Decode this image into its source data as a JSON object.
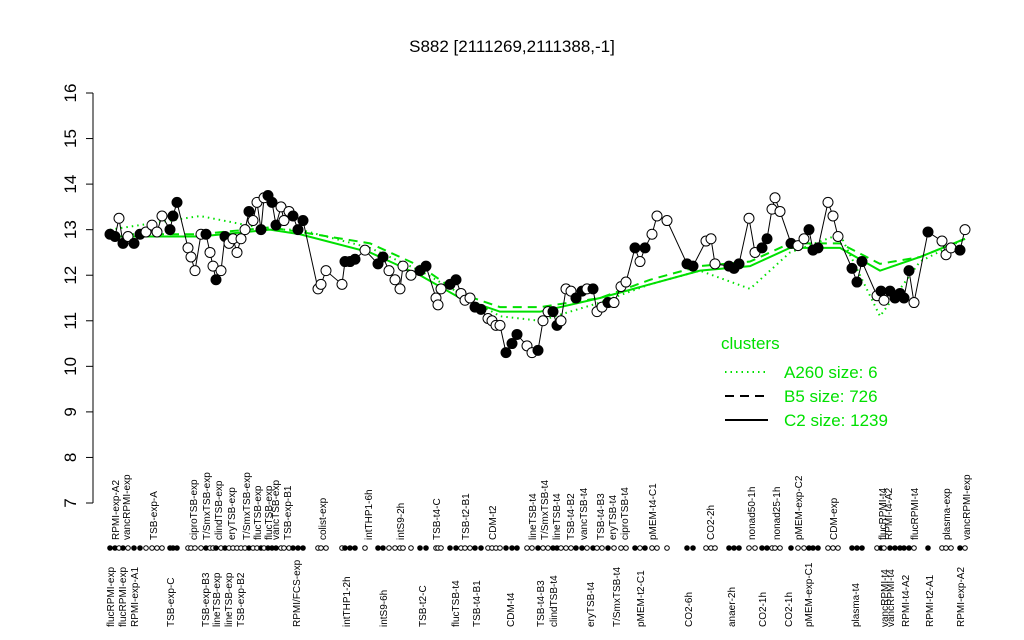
{
  "chart_data": {
    "type": "scatter",
    "title": "S882 [2111269,2111388,-1]",
    "xlim": [
      100,
      980
    ],
    "ylim": [
      7,
      16
    ],
    "yticks": [
      7,
      8,
      9,
      10,
      11,
      12,
      13,
      14,
      15,
      16
    ],
    "x": [
      110,
      115,
      119,
      123,
      128,
      134,
      140,
      146,
      152,
      157,
      162,
      170,
      173,
      177,
      188,
      191,
      195,
      201,
      206,
      210,
      213,
      216,
      221,
      225,
      229,
      233,
      237,
      241,
      245,
      249,
      253,
      257,
      261,
      264,
      268,
      272,
      276,
      281,
      284,
      289,
      293,
      298,
      303,
      318,
      321,
      326,
      342,
      345,
      350,
      355,
      365,
      378,
      383,
      389,
      395,
      400,
      403,
      411,
      420,
      426,
      436,
      438,
      441,
      450,
      456,
      461,
      465,
      470,
      475,
      481,
      488,
      492,
      496,
      500,
      506,
      512,
      517,
      527,
      532,
      538,
      543,
      548,
      553,
      557,
      561,
      566,
      571,
      576,
      582,
      587,
      593,
      597,
      602,
      608,
      614,
      621,
      626,
      635,
      640,
      645,
      652,
      657,
      667,
      687,
      693,
      706,
      711,
      715,
      729,
      734,
      739,
      749,
      755,
      762,
      767,
      772,
      775,
      780,
      791,
      798,
      804,
      809,
      813,
      818,
      828,
      833,
      838,
      852,
      857,
      862,
      877,
      881,
      884,
      890,
      895,
      900,
      904,
      909,
      914,
      928,
      942,
      946,
      951,
      960,
      965
    ],
    "series": [
      {
        "color": "#000000",
        "values": [
          12.9,
          12.85,
          13.25,
          12.7,
          12.85,
          12.7,
          12.9,
          12.95,
          13.1,
          12.95,
          13.3,
          13.0,
          13.3,
          13.6,
          12.6,
          12.4,
          12.1,
          12.9,
          12.9,
          12.5,
          12.2,
          11.9,
          12.1,
          12.85,
          12.7,
          12.8,
          12.5,
          12.8,
          13.0,
          13.4,
          13.2,
          13.6,
          13.0,
          13.7,
          13.75,
          13.6,
          13.1,
          13.5,
          13.2,
          13.4,
          13.3,
          13.0,
          13.2,
          11.7,
          11.8,
          12.1,
          11.8,
          12.3,
          12.3,
          12.35,
          12.55,
          12.25,
          12.4,
          12.1,
          11.9,
          11.7,
          12.2,
          12.0,
          12.1,
          12.2,
          11.5,
          11.35,
          11.7,
          11.8,
          11.9,
          11.6,
          11.45,
          11.5,
          11.3,
          11.25,
          11.05,
          11.0,
          10.9,
          10.9,
          10.3,
          10.5,
          10.7,
          10.45,
          10.3,
          10.35,
          11.0,
          11.2,
          11.2,
          10.9,
          11.0,
          11.7,
          11.65,
          11.5,
          11.65,
          11.7,
          11.7,
          11.2,
          11.3,
          11.4,
          11.4,
          11.75,
          11.85,
          12.6,
          12.3,
          12.6,
          12.9,
          13.3,
          13.2,
          12.25,
          12.2,
          12.75,
          12.8,
          12.25,
          12.2,
          12.15,
          12.25,
          13.25,
          12.5,
          12.6,
          12.8,
          13.45,
          13.7,
          13.4,
          12.7,
          12.65,
          12.8,
          13.0,
          12.55,
          12.6,
          13.6,
          13.3,
          12.85,
          12.15,
          11.85,
          12.3,
          11.55,
          11.65,
          11.45,
          11.65,
          11.5,
          11.6,
          11.5,
          12.1,
          11.4,
          12.95,
          12.75,
          12.45,
          12.6,
          12.55,
          13.0
        ]
      }
    ],
    "filled": [
      true,
      true,
      false,
      true,
      false,
      true,
      true,
      false,
      false,
      false,
      false,
      true,
      true,
      true,
      false,
      false,
      false,
      false,
      true,
      false,
      false,
      true,
      false,
      true,
      false,
      false,
      false,
      false,
      false,
      true,
      false,
      false,
      true,
      false,
      true,
      true,
      true,
      false,
      false,
      false,
      true,
      true,
      true,
      false,
      false,
      false,
      false,
      true,
      true,
      true,
      false,
      true,
      true,
      false,
      false,
      false,
      false,
      false,
      true,
      true,
      false,
      false,
      false,
      true,
      true,
      false,
      false,
      false,
      true,
      true,
      false,
      false,
      false,
      false,
      true,
      true,
      true,
      false,
      false,
      true,
      false,
      false,
      true,
      true,
      false,
      false,
      false,
      true,
      true,
      false,
      true,
      false,
      false,
      true,
      false,
      false,
      false,
      true,
      false,
      true,
      false,
      false,
      false,
      true,
      true,
      false,
      false,
      false,
      true,
      true,
      true,
      false,
      false,
      true,
      true,
      false,
      false,
      false,
      true,
      false,
      false,
      true,
      true,
      true,
      false,
      false,
      false,
      true,
      true,
      true,
      false,
      true,
      false,
      true,
      true,
      true,
      true,
      true,
      false,
      true,
      false,
      false,
      false,
      true,
      false
    ],
    "sample_labels": [
      {
        "x": 115,
        "row": "top",
        "text": "RPMI-exp-A2"
      },
      {
        "x": 126,
        "row": "top",
        "text": "vancRPMI-exp"
      },
      {
        "x": 153,
        "row": "top",
        "text": "TSB-exp-A"
      },
      {
        "x": 193,
        "row": "top",
        "text": "ciproTSB-exp"
      },
      {
        "x": 206,
        "row": "top",
        "text": "T/SmxTSB-exp"
      },
      {
        "x": 218,
        "row": "top",
        "text": "clindTSB-exp"
      },
      {
        "x": 231,
        "row": "top",
        "text": "eryTSB-exp"
      },
      {
        "x": 246,
        "row": "top",
        "text": "T/SmxTSB-exp"
      },
      {
        "x": 257,
        "row": "top",
        "text": "flucTSB-exp"
      },
      {
        "x": 268,
        "row": "top",
        "text": "flucTSB-exp"
      },
      {
        "x": 275,
        "row": "top",
        "text": "vancTSB-exp"
      },
      {
        "x": 287,
        "row": "top",
        "text": "TSB-exp-B1"
      },
      {
        "x": 322,
        "row": "top",
        "text": "colist-exp"
      },
      {
        "x": 368,
        "row": "top",
        "text": "intTHP1-6h"
      },
      {
        "x": 400,
        "row": "top",
        "text": "intS9-2h"
      },
      {
        "x": 436,
        "row": "top",
        "text": "TSB-t4-C"
      },
      {
        "x": 465,
        "row": "top",
        "text": "TSB-t2-B1"
      },
      {
        "x": 492,
        "row": "top",
        "text": "CDM-t2"
      },
      {
        "x": 532,
        "row": "top",
        "text": "lineTSB-t4"
      },
      {
        "x": 544,
        "row": "top",
        "text": "T/SmxTSB-t4"
      },
      {
        "x": 556,
        "row": "top",
        "text": "lineTSB-t4"
      },
      {
        "x": 570,
        "row": "top",
        "text": "TSB-t4-B2"
      },
      {
        "x": 583,
        "row": "top",
        "text": "vancTSB-t4"
      },
      {
        "x": 600,
        "row": "top",
        "text": "TSB-t4-B3"
      },
      {
        "x": 612,
        "row": "top",
        "text": "eryTSB-t4"
      },
      {
        "x": 624,
        "row": "top",
        "text": "ciproTSB-t4"
      },
      {
        "x": 652,
        "row": "top",
        "text": "pMEM-t4-C1"
      },
      {
        "x": 710,
        "row": "top",
        "text": "CO2-2h"
      },
      {
        "x": 751,
        "row": "top",
        "text": "nonad50-1h"
      },
      {
        "x": 776,
        "row": "top",
        "text": "nonad25-1h"
      },
      {
        "x": 798,
        "row": "top",
        "text": "pMEM-exp-C2"
      },
      {
        "x": 833,
        "row": "top",
        "text": "CDM-exp"
      },
      {
        "x": 882,
        "row": "top",
        "text": "flucRPMI-t4"
      },
      {
        "x": 888,
        "row": "top",
        "text": "RPMI-t4-A2"
      },
      {
        "x": 914,
        "row": "top",
        "text": "flucRPMI-t4"
      },
      {
        "x": 946,
        "row": "top",
        "text": "plasma-exp"
      },
      {
        "x": 966,
        "row": "top",
        "text": "vancRPMI-exp"
      },
      {
        "x": 110,
        "row": "bottom",
        "text": "flucRPMI-exp"
      },
      {
        "x": 122,
        "row": "bottom",
        "text": "flucRPMI-exp"
      },
      {
        "x": 134,
        "row": "bottom",
        "text": "RPMI-exp-A1"
      },
      {
        "x": 170,
        "row": "bottom",
        "text": "TSB-exp-C"
      },
      {
        "x": 205,
        "row": "bottom",
        "text": "TSB-exp-B3"
      },
      {
        "x": 216,
        "row": "bottom",
        "text": "lineTSB-exp"
      },
      {
        "x": 228,
        "row": "bottom",
        "text": "lineTSB-exp"
      },
      {
        "x": 240,
        "row": "bottom",
        "text": "TSB-exp-B2"
      },
      {
        "x": 296,
        "row": "bottom",
        "text": "RPMI/FCS-exp"
      },
      {
        "x": 346,
        "row": "bottom",
        "text": "intTHP1-2h"
      },
      {
        "x": 383,
        "row": "bottom",
        "text": "intS9-6h"
      },
      {
        "x": 422,
        "row": "bottom",
        "text": "TSB-t2-C"
      },
      {
        "x": 455,
        "row": "bottom",
        "text": "flucTSB-t4"
      },
      {
        "x": 476,
        "row": "bottom",
        "text": "TSB-t4-B1"
      },
      {
        "x": 510,
        "row": "bottom",
        "text": "CDM-t4"
      },
      {
        "x": 540,
        "row": "bottom",
        "text": "TSB-t4-B3"
      },
      {
        "x": 553,
        "row": "bottom",
        "text": "clindTSB-t4"
      },
      {
        "x": 590,
        "row": "bottom",
        "text": "eryTSB-t4"
      },
      {
        "x": 616,
        "row": "bottom",
        "text": "T/SmxTSB-t4"
      },
      {
        "x": 640,
        "row": "bottom",
        "text": "pMEM-t2-C1"
      },
      {
        "x": 688,
        "row": "bottom",
        "text": "CO2-6h"
      },
      {
        "x": 731,
        "row": "bottom",
        "text": "anaer-2h"
      },
      {
        "x": 762,
        "row": "bottom",
        "text": "CO2-1h"
      },
      {
        "x": 788,
        "row": "bottom",
        "text": "CO2-1h"
      },
      {
        "x": 808,
        "row": "bottom",
        "text": "pMEM-exp-C1"
      },
      {
        "x": 855,
        "row": "bottom",
        "text": "plasma-t4"
      },
      {
        "x": 884,
        "row": "bottom",
        "text": "vancRPMI-t4"
      },
      {
        "x": 890,
        "row": "bottom",
        "text": "vancRPMI-t4"
      },
      {
        "x": 905,
        "row": "bottom",
        "text": "RPMI-t4-A2"
      },
      {
        "x": 929,
        "row": "bottom",
        "text": "RPMI-t2-A1"
      },
      {
        "x": 960,
        "row": "bottom",
        "text": "RPMI-exp-A2"
      }
    ],
    "clusters": {
      "title": "clusters",
      "color": "#00e000",
      "x": [
        110,
        200,
        270,
        300,
        370,
        420,
        460,
        500,
        540,
        600,
        650,
        700,
        750,
        790,
        840,
        880,
        920,
        965
      ],
      "series": [
        {
          "name": "A260 size: 6",
          "style": "dotted",
          "values": [
            13.0,
            13.3,
            13.0,
            13.0,
            12.6,
            12.1,
            11.6,
            11.1,
            11.0,
            11.4,
            11.8,
            12.1,
            11.7,
            12.5,
            12.9,
            11.1,
            12.3,
            12.8
          ]
        },
        {
          "name": "B5 size: 726",
          "style": "dashed",
          "values": [
            12.9,
            12.9,
            13.05,
            12.95,
            12.7,
            12.2,
            11.6,
            11.3,
            11.3,
            11.5,
            11.9,
            12.2,
            12.3,
            12.7,
            12.7,
            12.25,
            12.4,
            12.8
          ]
        },
        {
          "name": "C2 size: 1239",
          "style": "solid",
          "values": [
            12.85,
            12.85,
            13.0,
            12.9,
            12.5,
            12.0,
            11.5,
            11.2,
            11.2,
            11.5,
            11.8,
            12.1,
            12.2,
            12.6,
            12.6,
            12.1,
            12.4,
            12.8
          ]
        }
      ]
    }
  }
}
